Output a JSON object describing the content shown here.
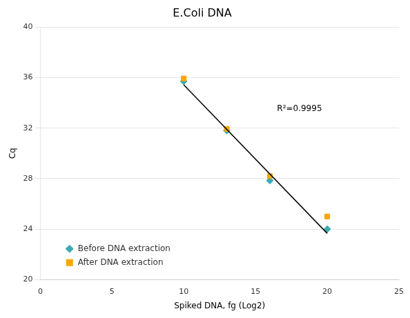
{
  "chart_data": {
    "type": "scatter",
    "title": "E.Coli DNA",
    "xlabel": "Spiked DNA, fg (Log2)",
    "ylabel": "Cq",
    "xlim": [
      0,
      25
    ],
    "ylim": [
      20,
      40
    ],
    "xticks": [
      0,
      5,
      10,
      15,
      20,
      25
    ],
    "yticks": [
      20,
      24,
      28,
      32,
      36,
      40
    ],
    "grid": "y",
    "legend": "lower left",
    "series": [
      {
        "name": "Before DNA extraction",
        "color": "#3aacb0",
        "marker": "diamond",
        "x": [
          10,
          13,
          16,
          20
        ],
        "values": [
          35.7,
          31.8,
          27.85,
          24.0
        ]
      },
      {
        "name": "After DNA extraction",
        "color": "#f5a800",
        "marker": "square",
        "x": [
          10,
          13,
          16,
          20
        ],
        "values": [
          35.93,
          31.93,
          28.2,
          25.0
        ]
      },
      {
        "type": "line",
        "color": "#000000",
        "x": [
          10,
          20
        ],
        "values": [
          35.4258,
          23.66096
        ]
      }
    ],
    "annotations": [
      {
        "text": "R²=0.9995",
        "x": 16.5,
        "y": 33.5
      }
    ]
  }
}
